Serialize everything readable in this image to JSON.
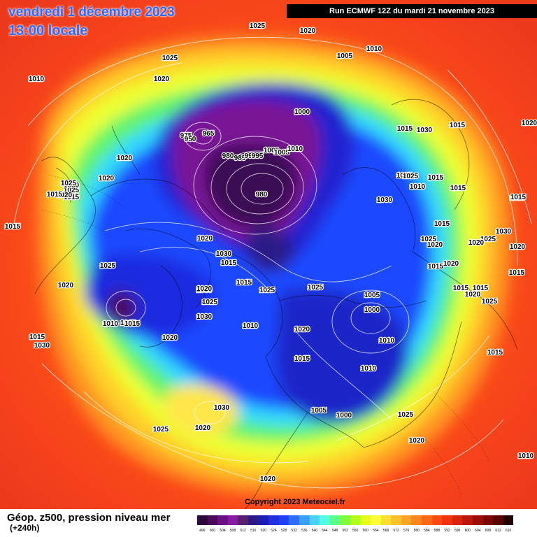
{
  "title": {
    "date": "vendredi 1 décembre 2023",
    "time": "13:00 locale"
  },
  "run_info": "Run ECMWF 12Z du mardi 21 novembre 2023",
  "copyright": "Copyright 2023 Meteociel.fr",
  "footer": {
    "title": "Géop. z500, pression niveau mer",
    "subtitle": "(+240h)"
  },
  "scale": {
    "values": [
      "496",
      "500",
      "504",
      "508",
      "512",
      "516",
      "520",
      "524",
      "528",
      "532",
      "536",
      "540",
      "544",
      "548",
      "552",
      "556",
      "560",
      "564",
      "568",
      "572",
      "576",
      "580",
      "584",
      "588",
      "592",
      "596",
      "600",
      "604",
      "608",
      "612",
      "616"
    ],
    "colors": [
      "#2b0a3b",
      "#4a0b5e",
      "#6b0f86",
      "#8a1aa3",
      "#5a1f6e",
      "#2e1a86",
      "#1c1cb5",
      "#1f2fe0",
      "#2040ff",
      "#2d6eff",
      "#3aa0ff",
      "#49d2ff",
      "#4fffe0",
      "#59ff8a",
      "#7dff3b",
      "#b4ff1c",
      "#e6ff1a",
      "#ffff33",
      "#ffe030",
      "#ffc22a",
      "#ffa423",
      "#ff861c",
      "#ff6815",
      "#ff4a10",
      "#f2330c",
      "#d8240a",
      "#bb1808",
      "#9a0f06",
      "#7a0804",
      "#550303",
      "#220000"
    ]
  },
  "map_labels": [
    "1025",
    "1020",
    "1005",
    "1010",
    "1010",
    "1025",
    "1020",
    "1015",
    "1000",
    "1030",
    "1015",
    "965",
    "975",
    "950",
    "980",
    "985",
    "990",
    "995",
    "1000",
    "1005",
    "1010",
    "980",
    "1020",
    "1025",
    "1030",
    "1015",
    "1020",
    "1025",
    "1020",
    "1015",
    "1015",
    "1020",
    "1030",
    "1015",
    "1025",
    "1015",
    "1025",
    "1030",
    "1020",
    "1025",
    "1015",
    "1020",
    "1015",
    "1020",
    "1025",
    "1015",
    "1015",
    "1020",
    "1025",
    "1030",
    "1025",
    "1020",
    "1020",
    "1015",
    "1010",
    "1015",
    "1015",
    "1030",
    "1020",
    "1015",
    "1025",
    "1030",
    "1020",
    "1010",
    "1005",
    "1000",
    "1015",
    "1010",
    "1010",
    "1020",
    "1015",
    "1010",
    "1015",
    "1025",
    "1015",
    "1030",
    "1030",
    "1025",
    "1020",
    "1005",
    "1000",
    "1025",
    "1020",
    "1010",
    "1015",
    "1020",
    "1015",
    "1015",
    "1020"
  ]
}
